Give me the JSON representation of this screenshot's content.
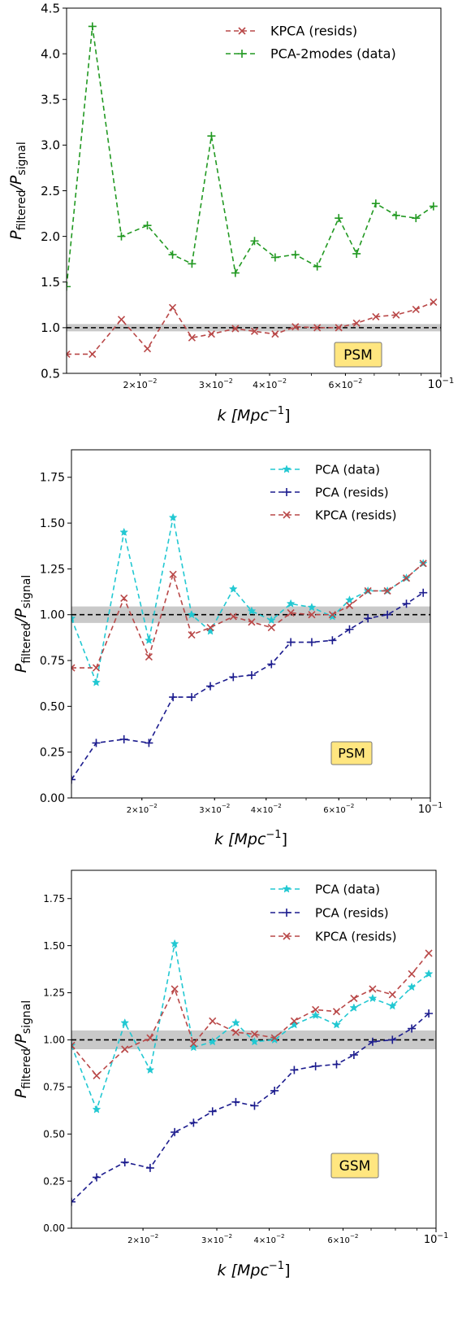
{
  "chart_data": [
    {
      "type": "line",
      "xscale": "log",
      "xlim": [
        0.0135,
        0.1
      ],
      "ylim": [
        0.5,
        4.5
      ],
      "yticks": [
        "0.5",
        "1.0",
        "1.5",
        "2.0",
        "2.5",
        "3.0",
        "3.5",
        "4.0",
        "4.5"
      ],
      "xticks": [
        {
          "base": "2",
          "exp": "−2",
          "value": 0.02
        },
        {
          "base": "3",
          "exp": "−2",
          "value": 0.03
        },
        {
          "base": "4",
          "exp": "−2",
          "value": 0.04
        },
        {
          "base": "6",
          "exp": "−2",
          "value": 0.06
        },
        {
          "base": "",
          "exp": "−1",
          "value": 0.1
        }
      ],
      "xlabel": {
        "k": "k",
        "unit": "[Mpc",
        "exp": "−1",
        "close": "]"
      },
      "ylabel": {
        "p": "P",
        "num": "filtered",
        "slash": "/P",
        "den": "signal"
      },
      "reference_line": 1.0,
      "band": [
        0.96,
        1.04
      ],
      "annotation": "PSM",
      "legend_position": "upper-right",
      "series": [
        {
          "name": "KPCA (resids)",
          "color": "#b94848",
          "marker": "x",
          "x": [
            0.0135,
            0.0155,
            0.0181,
            0.0208,
            0.0238,
            0.0264,
            0.0293,
            0.0333,
            0.0369,
            0.0412,
            0.0459,
            0.0516,
            0.0579,
            0.0637,
            0.0706,
            0.0787,
            0.0875,
            0.0961
          ],
          "y": [
            0.71,
            0.71,
            1.09,
            0.77,
            1.22,
            0.89,
            0.93,
            0.99,
            0.96,
            0.93,
            1.01,
            1.0,
            1.0,
            1.05,
            1.12,
            1.14,
            1.2,
            1.28
          ]
        },
        {
          "name": "PCA-2modes (data)",
          "color": "#229922",
          "marker": "+",
          "x": [
            0.0135,
            0.0155,
            0.0181,
            0.0208,
            0.0238,
            0.0264,
            0.0293,
            0.0333,
            0.0369,
            0.0412,
            0.0459,
            0.0516,
            0.0579,
            0.0637,
            0.0706,
            0.0787,
            0.0875,
            0.0961
          ],
          "y": [
            1.45,
            4.3,
            2.0,
            2.12,
            1.8,
            1.7,
            3.1,
            1.6,
            1.95,
            1.77,
            1.8,
            1.67,
            2.2,
            1.81,
            2.36,
            2.23,
            2.2,
            2.33
          ]
        }
      ]
    },
    {
      "type": "line",
      "xscale": "log",
      "xlim": [
        0.0135,
        0.1
      ],
      "ylim": [
        0.0,
        1.9
      ],
      "yticks": [
        "0.00",
        "0.25",
        "0.50",
        "0.75",
        "1.00",
        "1.25",
        "1.50",
        "1.75"
      ],
      "xticks": [
        {
          "base": "2",
          "exp": "−2",
          "value": 0.02
        },
        {
          "base": "3",
          "exp": "−2",
          "value": 0.03
        },
        {
          "base": "4",
          "exp": "−2",
          "value": 0.04
        },
        {
          "base": "6",
          "exp": "−2",
          "value": 0.06
        },
        {
          "base": "",
          "exp": "−1",
          "value": 0.1
        }
      ],
      "xlabel": {
        "k": "k",
        "unit": "[Mpc",
        "exp": "−1",
        "close": "]"
      },
      "ylabel": {
        "p": "P",
        "num": "filtered",
        "slash": "/P",
        "den": "signal"
      },
      "reference_line": 1.0,
      "band": [
        0.955,
        1.045
      ],
      "annotation": "PSM",
      "legend_position": "upper-right",
      "series": [
        {
          "name": "PCA (data)",
          "color": "#22c8d2",
          "marker": "*",
          "x": [
            0.0135,
            0.0155,
            0.0181,
            0.0208,
            0.0238,
            0.0264,
            0.0293,
            0.0333,
            0.0369,
            0.0412,
            0.0459,
            0.0516,
            0.0579,
            0.0637,
            0.0706,
            0.0787,
            0.0875,
            0.0961
          ],
          "y": [
            0.98,
            0.63,
            1.45,
            0.86,
            1.53,
            1.0,
            0.91,
            1.14,
            1.02,
            0.97,
            1.06,
            1.04,
            0.99,
            1.08,
            1.13,
            1.13,
            1.2,
            1.28
          ]
        },
        {
          "name": "PCA (resids)",
          "color": "#1c1c8e",
          "marker": "+",
          "x": [
            0.0135,
            0.0155,
            0.0181,
            0.0208,
            0.0238,
            0.0264,
            0.0293,
            0.0333,
            0.0369,
            0.0412,
            0.0459,
            0.0516,
            0.0579,
            0.0637,
            0.0706,
            0.0787,
            0.0875,
            0.0961
          ],
          "y": [
            0.1,
            0.3,
            0.32,
            0.3,
            0.55,
            0.55,
            0.61,
            0.66,
            0.67,
            0.73,
            0.85,
            0.85,
            0.86,
            0.92,
            0.98,
            1.0,
            1.06,
            1.12
          ]
        },
        {
          "name": "KPCA (resids)",
          "color": "#b94848",
          "marker": "x",
          "x": [
            0.0135,
            0.0155,
            0.0181,
            0.0208,
            0.0238,
            0.0264,
            0.0293,
            0.0333,
            0.0369,
            0.0412,
            0.0459,
            0.0516,
            0.0579,
            0.0637,
            0.0706,
            0.0787,
            0.0875,
            0.0961
          ],
          "y": [
            0.71,
            0.71,
            1.09,
            0.77,
            1.22,
            0.89,
            0.93,
            0.99,
            0.96,
            0.93,
            1.01,
            1.0,
            1.0,
            1.05,
            1.13,
            1.13,
            1.2,
            1.28
          ]
        }
      ]
    },
    {
      "type": "line",
      "xscale": "log",
      "xlim": [
        0.0135,
        0.1
      ],
      "ylim": [
        0.0,
        1.9
      ],
      "yticks": [
        "0.00",
        "0.25",
        "0.50",
        "0.75",
        "1.00",
        "1.25",
        "1.50",
        "1.75"
      ],
      "xticks": [
        {
          "base": "2",
          "exp": "−2",
          "value": 0.02
        },
        {
          "base": "3",
          "exp": "−2",
          "value": 0.03
        },
        {
          "base": "4",
          "exp": "−2",
          "value": 0.04
        },
        {
          "base": "6",
          "exp": "−2",
          "value": 0.06
        },
        {
          "base": "",
          "exp": "−1",
          "value": 0.1
        }
      ],
      "xlabel": {
        "k": "k",
        "unit": "[Mpc",
        "exp": "−1",
        "close": "]"
      },
      "ylabel": {
        "p": "P",
        "num": "filtered",
        "slash": "/P",
        "den": "signal"
      },
      "reference_line": 1.0,
      "band": [
        0.95,
        1.05
      ],
      "annotation": "GSM",
      "legend_position": "upper-right",
      "series": [
        {
          "name": "PCA (data)",
          "color": "#22c8d2",
          "marker": "*",
          "x": [
            0.0135,
            0.0155,
            0.0181,
            0.0208,
            0.0238,
            0.0264,
            0.0293,
            0.0333,
            0.0369,
            0.0412,
            0.0459,
            0.0516,
            0.0579,
            0.0637,
            0.0706,
            0.0787,
            0.0875,
            0.0961
          ],
          "y": [
            0.97,
            0.63,
            1.09,
            0.84,
            1.51,
            0.96,
            0.99,
            1.09,
            0.99,
            1.0,
            1.08,
            1.13,
            1.08,
            1.17,
            1.22,
            1.18,
            1.28,
            1.35
          ]
        },
        {
          "name": "PCA (resids)",
          "color": "#1c1c8e",
          "marker": "+",
          "x": [
            0.0135,
            0.0155,
            0.0181,
            0.0208,
            0.0238,
            0.0264,
            0.0293,
            0.0333,
            0.0369,
            0.0412,
            0.0459,
            0.0516,
            0.0579,
            0.0637,
            0.0706,
            0.0787,
            0.0875,
            0.0961
          ],
          "y": [
            0.14,
            0.27,
            0.35,
            0.32,
            0.51,
            0.56,
            0.62,
            0.67,
            0.65,
            0.73,
            0.84,
            0.86,
            0.87,
            0.92,
            0.99,
            1.0,
            1.06,
            1.14
          ]
        },
        {
          "name": "KPCA (resids)",
          "color": "#b94848",
          "marker": "x",
          "x": [
            0.0135,
            0.0155,
            0.0181,
            0.0208,
            0.0238,
            0.0264,
            0.0293,
            0.0333,
            0.0369,
            0.0412,
            0.0459,
            0.0516,
            0.0579,
            0.0637,
            0.0706,
            0.0787,
            0.0875,
            0.0961
          ],
          "y": [
            0.97,
            0.81,
            0.95,
            1.01,
            1.27,
            0.98,
            1.1,
            1.04,
            1.03,
            1.01,
            1.1,
            1.16,
            1.15,
            1.22,
            1.27,
            1.24,
            1.35,
            1.46
          ]
        }
      ]
    }
  ]
}
